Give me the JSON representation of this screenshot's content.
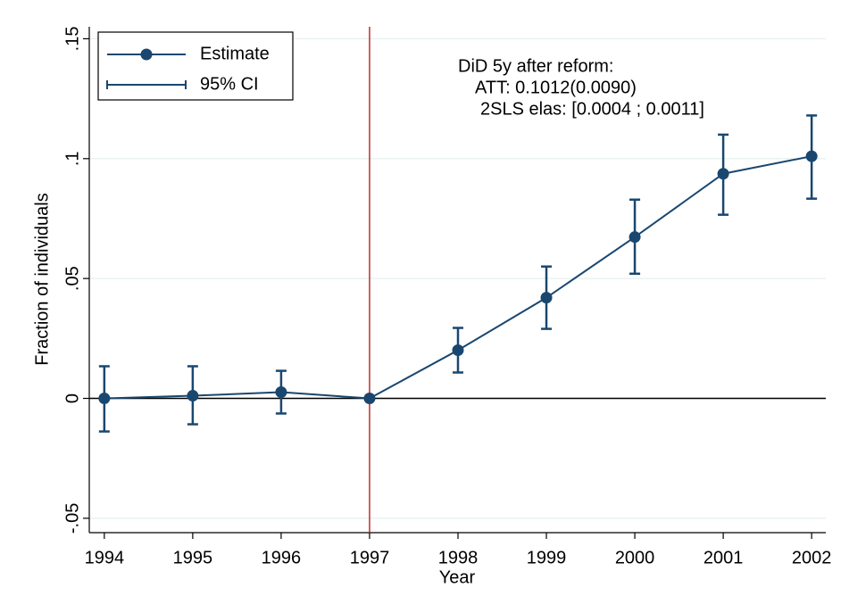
{
  "chart_data": {
    "type": "line",
    "x_label": "Year",
    "y_label": "Fraction of individuals",
    "x": [
      1994,
      1995,
      1996,
      1997,
      1998,
      1999,
      2000,
      2001,
      2002
    ],
    "series": [
      {
        "name": "Estimate",
        "color": "#1a476f",
        "values": [
          0,
          0.0011,
          0.0026,
          0,
          0.0201,
          0.042,
          0.0673,
          0.0937,
          0.101
        ]
      }
    ],
    "ci": {
      "name": "95% CI",
      "color": "#1a476f",
      "lower": [
        -0.0138,
        -0.0108,
        -0.0063,
        null,
        0.0108,
        0.029,
        0.052,
        0.0766,
        0.0833
      ],
      "upper": [
        0.0134,
        0.0134,
        0.0115,
        null,
        0.0294,
        0.055,
        0.0829,
        0.11,
        0.118
      ]
    },
    "xlim": [
      1993.83,
      2002.16
    ],
    "xticks": [
      1994,
      1995,
      1996,
      1997,
      1998,
      1999,
      2000,
      2001,
      2002
    ],
    "ylim": [
      -0.056,
      0.155
    ],
    "yticks": [
      {
        "value": -0.05,
        "label": "-.05"
      },
      0,
      {
        "value": 0.05,
        "label": ".05"
      },
      {
        "value": 0.1,
        "label": ".1"
      },
      {
        "value": 0.15,
        "label": ".15"
      }
    ],
    "grid": true,
    "grid_color": "#eaf2f3",
    "reference_x": 1997,
    "reference_x_color": "#c0302a",
    "reference_y": 0,
    "legend_position": "top-left",
    "annotation": [
      "DiD 5y after reform:",
      "ATT: 0.1012(0.0090)",
      "2SLS elas: [0.0004 ; 0.0011]"
    ]
  }
}
